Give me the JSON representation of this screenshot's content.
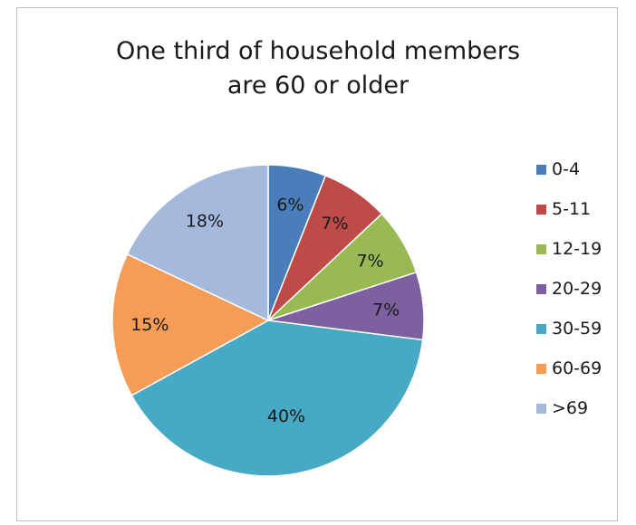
{
  "chart_data": {
    "type": "pie",
    "title_lines": [
      "One third of household members",
      "are 60 or older"
    ],
    "legend_position": "right",
    "slices": [
      {
        "name": "0-4",
        "value": 6,
        "label": "6%",
        "color": "#4a7ebb"
      },
      {
        "name": "5-11",
        "value": 7,
        "label": "7%",
        "color": "#be4b48"
      },
      {
        "name": "12-19",
        "value": 7,
        "label": "7%",
        "color": "#98b954"
      },
      {
        "name": "20-29",
        "value": 7,
        "label": "7%",
        "color": "#7d60a0"
      },
      {
        "name": "30-59",
        "value": 40,
        "label": "40%",
        "color": "#46aac5"
      },
      {
        "name": "60-69",
        "value": 15,
        "label": "15%",
        "color": "#f59d56"
      },
      {
        "name": ">69",
        "value": 18,
        "label": "18%",
        "color": "#a5b9dd"
      }
    ]
  }
}
